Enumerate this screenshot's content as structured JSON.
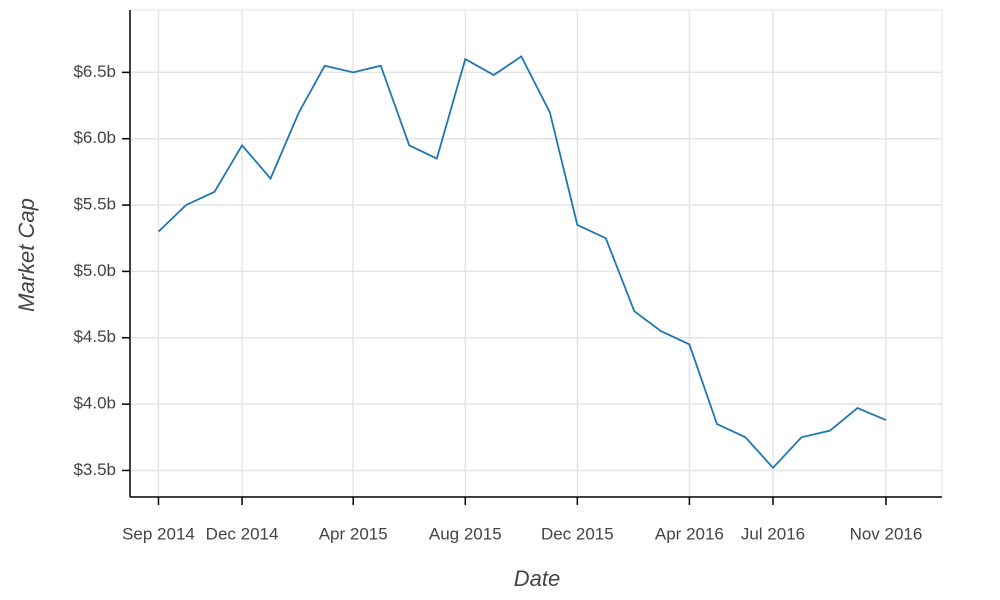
{
  "chart_data": {
    "type": "line",
    "x_label": "Date",
    "y_label": "Market Cap",
    "x": [
      "2014-09",
      "2014-10",
      "2014-11",
      "2014-12",
      "2015-01",
      "2015-02",
      "2015-03",
      "2015-04",
      "2015-05",
      "2015-06",
      "2015-07",
      "2015-08",
      "2015-09",
      "2015-10",
      "2015-11",
      "2015-12",
      "2016-01",
      "2016-02",
      "2016-03",
      "2016-04",
      "2016-05",
      "2016-06",
      "2016-07",
      "2016-08",
      "2016-09",
      "2016-10",
      "2016-11"
    ],
    "series": [
      {
        "color": "#1f77b4",
        "values": [
          5.3,
          5.5,
          5.6,
          5.95,
          5.7,
          6.2,
          6.55,
          6.5,
          6.55,
          5.95,
          5.85,
          6.6,
          6.48,
          6.62,
          6.2,
          5.35,
          5.25,
          4.7,
          4.55,
          4.45,
          3.85,
          3.75,
          3.52,
          3.75,
          3.8,
          3.97,
          3.88
        ]
      }
    ],
    "xlim": [
      "2014-08",
      "2017-01"
    ],
    "xticks": [
      {
        "value": "2014-09",
        "label": "Sep 2014"
      },
      {
        "value": "2014-12",
        "label": "Dec 2014"
      },
      {
        "value": "2015-04",
        "label": "Apr 2015"
      },
      {
        "value": "2015-08",
        "label": "Aug 2015"
      },
      {
        "value": "2015-12",
        "label": "Dec 2015"
      },
      {
        "value": "2016-04",
        "label": "Apr 2016"
      },
      {
        "value": "2016-07",
        "label": "Jul 2016"
      },
      {
        "value": "2016-11",
        "label": "Nov 2016"
      }
    ],
    "ylim": [
      3.3,
      6.97
    ],
    "yticks": [
      {
        "value": 3.5,
        "label": "$3.5b"
      },
      {
        "value": 4.0,
        "label": "$4.0b"
      },
      {
        "value": 4.5,
        "label": "$4.5b"
      },
      {
        "value": 5.0,
        "label": "$5.0b"
      },
      {
        "value": 5.5,
        "label": "$5.5b"
      },
      {
        "value": 6.0,
        "label": "$6.0b"
      },
      {
        "value": 6.5,
        "label": "$6.5b"
      }
    ],
    "grid": true
  }
}
